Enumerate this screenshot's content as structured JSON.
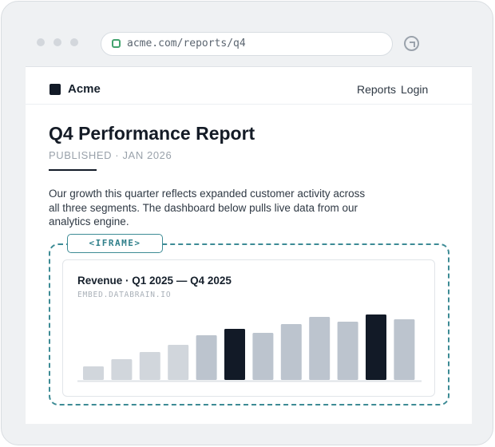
{
  "browser": {
    "url": "acme.com/reports/q4"
  },
  "site": {
    "brand": "Acme",
    "nav": [
      "Reports",
      "Login"
    ]
  },
  "article": {
    "title": "Q4 Performance Report",
    "meta": "PUBLISHED · JAN 2026",
    "body": "Our growth this quarter reflects expanded customer activity across all three segments. The dashboard below pulls live data from our analytics engine."
  },
  "embed": {
    "tag": "<IFRAME>",
    "source": "EMBED.DATABRAIN.IO"
  },
  "chart_data": {
    "type": "bar",
    "title": "Revenue · Q1 2025 — Q4 2025",
    "values": [
      17,
      26,
      35,
      44,
      56,
      64,
      59,
      70,
      79,
      73,
      82,
      76
    ],
    "highlighted": [
      5,
      10
    ],
    "colors": {
      "normal": "#d1d6dc",
      "mid": "#bcc4ce",
      "highlight": "#121a27",
      "baseline": "#dfe3e7"
    },
    "grid": false,
    "legend": "none"
  }
}
